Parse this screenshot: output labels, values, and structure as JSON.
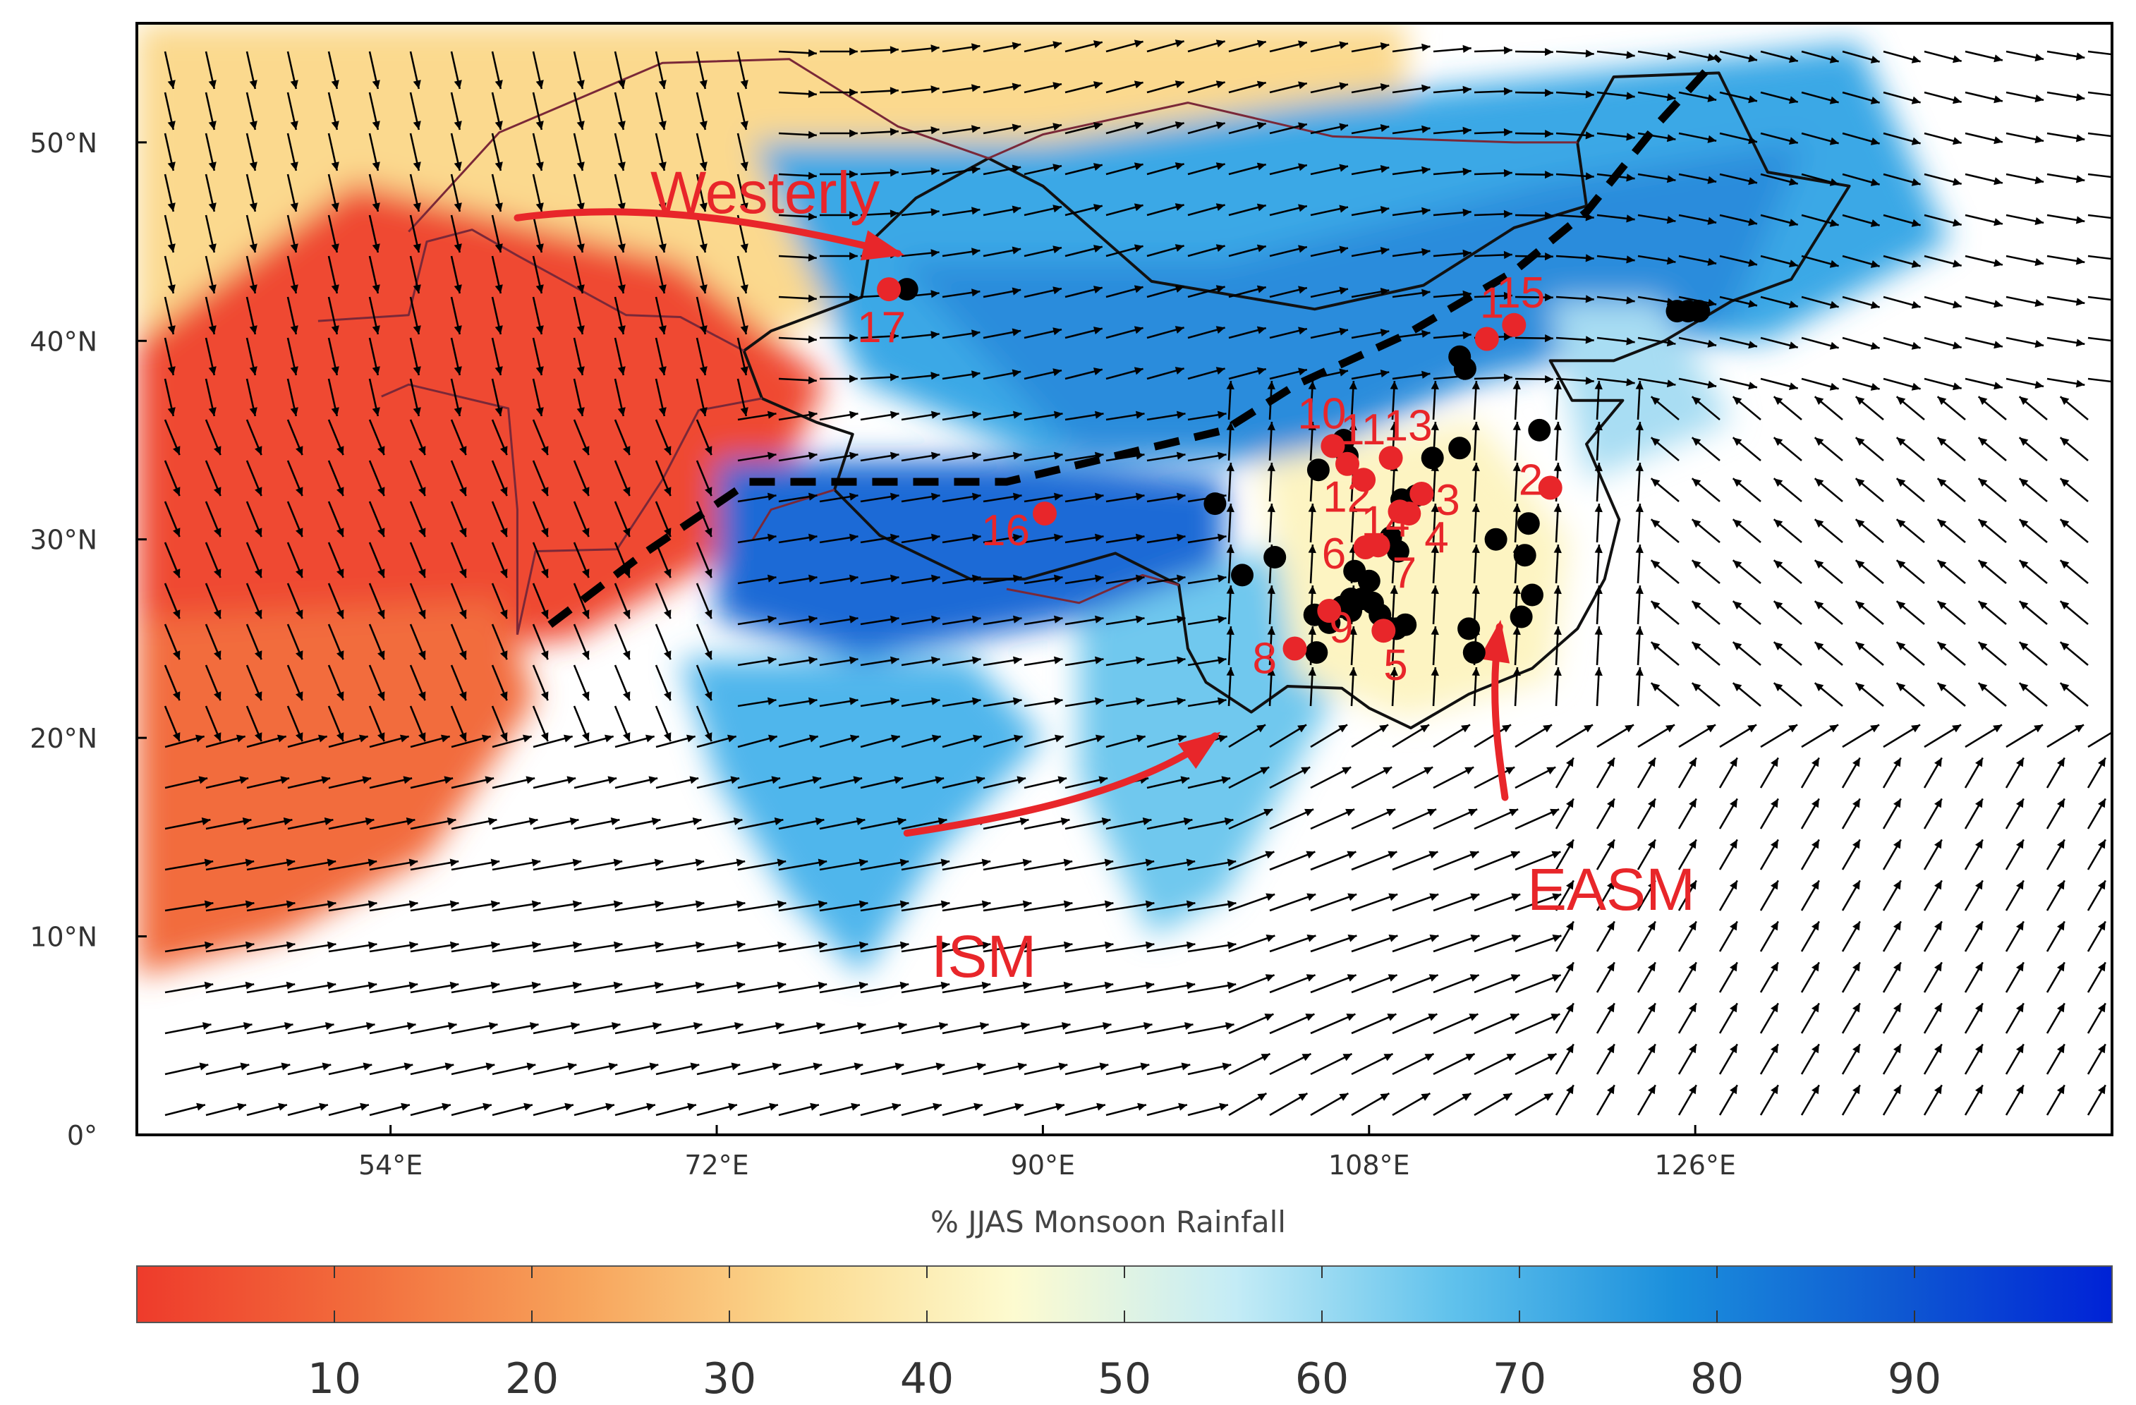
{
  "map": {
    "lon_range": [
      40,
      149
    ],
    "lat_range": [
      0,
      56
    ],
    "lon_ticks": [
      "54°E",
      "72°E",
      "90°E",
      "108°E",
      "126°E"
    ],
    "lon_tick_values": [
      54,
      72,
      90,
      108,
      126
    ],
    "lat_ticks": [
      "50°N",
      "40°N",
      "30°N",
      "20°N",
      "10°N",
      "0°"
    ],
    "lat_tick_values": [
      50,
      40,
      30,
      20,
      10,
      0
    ]
  },
  "colorbar": {
    "title": "% JJAS Monsoon Rainfall",
    "ticks": [
      "10",
      "20",
      "30",
      "40",
      "50",
      "60",
      "70",
      "80",
      "90"
    ],
    "tick_values": [
      10,
      20,
      30,
      40,
      50,
      60,
      70,
      80,
      90
    ],
    "range": [
      0,
      100
    ],
    "stops": [
      "#ee3b2b",
      "#f26c3c",
      "#f7a25a",
      "#fbd98e",
      "#fdfbd0",
      "#c4ecf6",
      "#5fc1ec",
      "#1b8fdc",
      "#0f5ad2",
      "#0022d6"
    ]
  },
  "annotations": {
    "westerly": "Westerly",
    "ism": "ISM",
    "easm": "EASM"
  },
  "red_sites": [
    {
      "label": "1",
      "lon": 114.5,
      "lat": 40.1
    },
    {
      "label": "2",
      "lon": 118.0,
      "lat": 32.6
    },
    {
      "label": "3",
      "lon": 110.9,
      "lat": 32.3
    },
    {
      "label": "4",
      "lon": 110.2,
      "lat": 31.3
    },
    {
      "label": "5",
      "lon": 108.8,
      "lat": 25.4
    },
    {
      "label": "6",
      "lon": 107.8,
      "lat": 29.6
    },
    {
      "label": "7",
      "lon": 108.5,
      "lat": 29.7
    },
    {
      "label": "8",
      "lon": 103.9,
      "lat": 24.5
    },
    {
      "label": "9",
      "lon": 105.8,
      "lat": 26.4
    },
    {
      "label": "10",
      "lon": 106.0,
      "lat": 34.7
    },
    {
      "label": "11",
      "lon": 106.8,
      "lat": 33.8
    },
    {
      "label": "12",
      "lon": 107.7,
      "lat": 33.0
    },
    {
      "label": "13",
      "lon": 109.2,
      "lat": 34.1
    },
    {
      "label": "14",
      "lon": 109.7,
      "lat": 31.4
    },
    {
      "label": "15",
      "lon": 116.0,
      "lat": 40.8
    },
    {
      "label": "16",
      "lon": 90.1,
      "lat": 31.3
    },
    {
      "label": "17",
      "lon": 81.5,
      "lat": 42.6
    }
  ],
  "black_sites": [
    [
      82.5,
      42.6
    ],
    [
      125.0,
      41.5
    ],
    [
      125.6,
      41.5
    ],
    [
      126.2,
      41.5
    ],
    [
      117.4,
      35.5
    ],
    [
      113.0,
      39.2
    ],
    [
      113.3,
      38.6
    ],
    [
      106.6,
      35.0
    ],
    [
      105.2,
      33.5
    ],
    [
      106.8,
      34.2
    ],
    [
      111.5,
      34.1
    ],
    [
      113.0,
      34.6
    ],
    [
      110.6,
      32.2
    ],
    [
      109.8,
      32.0
    ],
    [
      109.2,
      30.1
    ],
    [
      109.6,
      29.4
    ],
    [
      107.2,
      28.4
    ],
    [
      108.0,
      27.9
    ],
    [
      107.0,
      27.0
    ],
    [
      107.6,
      27.0
    ],
    [
      108.2,
      26.8
    ],
    [
      107.0,
      26.4
    ],
    [
      106.5,
      26.6
    ],
    [
      108.6,
      26.2
    ],
    [
      108.9,
      25.6
    ],
    [
      109.5,
      25.5
    ],
    [
      110.0,
      25.7
    ],
    [
      105.0,
      26.2
    ],
    [
      105.8,
      25.8
    ],
    [
      113.5,
      25.5
    ],
    [
      113.8,
      24.3
    ],
    [
      115.0,
      30.0
    ],
    [
      116.8,
      30.8
    ],
    [
      116.6,
      29.2
    ],
    [
      117.0,
      27.2
    ],
    [
      116.4,
      26.1
    ],
    [
      99.5,
      31.8
    ],
    [
      101.0,
      28.2
    ],
    [
      102.8,
      29.1
    ],
    [
      105.1,
      24.3
    ]
  ],
  "boundary": {
    "kind": "dashed",
    "points": [
      [
        62.8,
        25.7
      ],
      [
        68,
        29.3
      ],
      [
        73.8,
        32.9
      ],
      [
        80,
        32.9
      ],
      [
        88,
        32.9
      ],
      [
        100,
        35.5
      ],
      [
        104,
        37.8
      ],
      [
        110,
        40.3
      ],
      [
        116,
        43.5
      ],
      [
        120,
        46.5
      ],
      [
        124,
        51.0
      ],
      [
        127.3,
        54.3
      ]
    ]
  },
  "arrows": {
    "westerly": {
      "points": [
        [
          61,
          46.2
        ],
        [
          69,
          47.2
        ],
        [
          77,
          45.5
        ],
        [
          82,
          44.4
        ]
      ]
    },
    "ism": {
      "points": [
        [
          82.5,
          15.2
        ],
        [
          89,
          16.1
        ],
        [
          95.4,
          17.4
        ],
        [
          99.5,
          20.1
        ]
      ]
    },
    "easm": {
      "points": [
        [
          115.5,
          17.0
        ],
        [
          115.2,
          19.0
        ],
        [
          114.6,
          22.0
        ],
        [
          115.2,
          25.6
        ]
      ]
    }
  }
}
